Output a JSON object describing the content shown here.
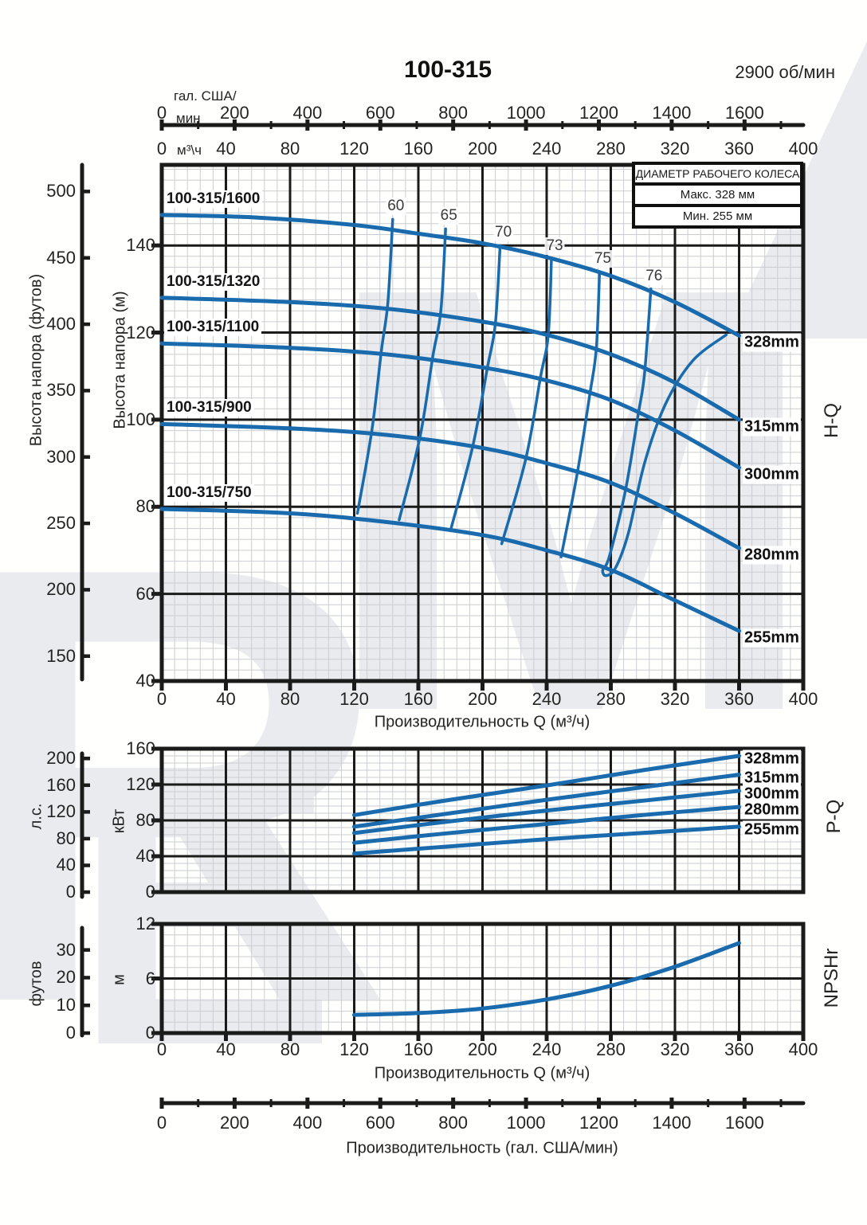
{
  "header": {
    "title": "100-315",
    "rpm": "2900 об/мин"
  },
  "legend": {
    "title": "ДИАМЕТР РАБОЧЕГО КОЛЕСА",
    "max_label": "Макс. 328 мм",
    "min_label": "Мин. 255 мм"
  },
  "chart_data": {
    "type": "line",
    "flow_axis_m3h": {
      "label": "Производительность Q (м³/ч)",
      "unit": "м³\\ч",
      "min": 0,
      "max": 400,
      "ticks": [
        0,
        40,
        80,
        120,
        160,
        200,
        240,
        280,
        320,
        360,
        400
      ]
    },
    "gal_axis": {
      "label": "Производительность (гал. США/мин)",
      "unit_line1": "гал. США/",
      "unit_line2": "мин",
      "ticks": [
        0,
        200,
        400,
        600,
        800,
        1000,
        1200,
        1400,
        1600
      ],
      "gal_per_m3h": 4.4029,
      "minor_step": 100,
      "max_minor": 1700
    },
    "hq_chart": {
      "side_label": "H-Q",
      "head_m": {
        "label": "Высота напора (м)",
        "min": 40,
        "max": 158.5,
        "ticks": [
          40,
          60,
          80,
          100,
          120,
          140
        ]
      },
      "head_ft": {
        "label": "Высота напора (футов)",
        "ft_per_m": 3.2808,
        "ticks": [
          150,
          200,
          250,
          300,
          350,
          400,
          450,
          500
        ]
      },
      "curves": [
        {
          "model": "100-315/1600",
          "diameter": "328mm",
          "points": [
            [
              0,
              147
            ],
            [
              60,
              146.4
            ],
            [
              120,
              144.7
            ],
            [
              160,
              142.7
            ],
            [
              200,
              140.5
            ],
            [
              240,
              137.3
            ],
            [
              280,
              133
            ],
            [
              320,
              127
            ],
            [
              360,
              119.3
            ]
          ]
        },
        {
          "model": "100-315/1320",
          "diameter": "315mm",
          "points": [
            [
              0,
              128
            ],
            [
              80,
              127
            ],
            [
              140,
              125.5
            ],
            [
              200,
              122.5
            ],
            [
              240,
              119.5
            ],
            [
              280,
              115
            ],
            [
              320,
              108.5
            ],
            [
              360,
              100
            ]
          ]
        },
        {
          "model": "100-315/1100",
          "diameter": "300mm",
          "points": [
            [
              0,
              117.5
            ],
            [
              80,
              116.5
            ],
            [
              140,
              115
            ],
            [
              200,
              112
            ],
            [
              240,
              109
            ],
            [
              280,
              104.5
            ],
            [
              320,
              97.5
            ],
            [
              360,
              89
            ]
          ]
        },
        {
          "model": "100-315/900",
          "diameter": "280mm",
          "points": [
            [
              0,
              99
            ],
            [
              80,
              98
            ],
            [
              140,
              96.5
            ],
            [
              200,
              93.5
            ],
            [
              240,
              90
            ],
            [
              280,
              85.5
            ],
            [
              320,
              78.5
            ],
            [
              360,
              70.5
            ]
          ]
        },
        {
          "model": "100-315/750",
          "diameter": "255mm",
          "points": [
            [
              0,
              79.5
            ],
            [
              80,
              78.5
            ],
            [
              140,
              76.5
            ],
            [
              200,
              73.5
            ],
            [
              240,
              70
            ],
            [
              280,
              65.5
            ],
            [
              320,
              58.5
            ],
            [
              360,
              51.5
            ]
          ]
        }
      ],
      "efficiency_lines": [
        {
          "label": "60",
          "points": [
            [
              144,
              146
            ],
            [
              141,
              127
            ],
            [
              137,
              116
            ],
            [
              131,
              97.5
            ],
            [
              122,
              78.5
            ]
          ]
        },
        {
          "label": "65",
          "points": [
            [
              177,
              143.8
            ],
            [
              174,
              125
            ],
            [
              169,
              114.5
            ],
            [
              161,
              96
            ],
            [
              148,
              77
            ]
          ]
        },
        {
          "label": "70",
          "points": [
            [
              211,
              140
            ],
            [
              208,
              122
            ],
            [
              203,
              111.8
            ],
            [
              194,
              94
            ],
            [
              180,
              74.5
            ]
          ]
        },
        {
          "label": "73",
          "points": [
            [
              243,
              137
            ],
            [
              241,
              119.5
            ],
            [
              236,
              109.5
            ],
            [
              227,
              91
            ],
            [
              212,
              71.5
            ]
          ]
        },
        {
          "label": "75",
          "points": [
            [
              273,
              134
            ],
            [
              271,
              116.5
            ],
            [
              267,
              106
            ],
            [
              259,
              87.5
            ],
            [
              249,
              68.5
            ]
          ]
        },
        {
          "label": "76",
          "points": [
            [
              305,
              130
            ],
            [
              301,
              110.5
            ],
            [
              297,
              101
            ],
            [
              289,
              83.5
            ],
            [
              279,
              68.5
            ],
            [
              275,
              65.5
            ],
            [
              277,
              64.2
            ],
            [
              283,
              66
            ],
            [
              291,
              74
            ],
            [
              301,
              90
            ],
            [
              314,
              103.5
            ],
            [
              331,
              113.5
            ],
            [
              352,
              119.5
            ]
          ]
        }
      ]
    },
    "pq_chart": {
      "side_label": "P-Q",
      "power_kw": {
        "label": "кВт",
        "min": 0,
        "max": 160,
        "ticks": [
          0,
          40,
          80,
          120,
          160
        ]
      },
      "power_hp": {
        "label": "л.с.",
        "hp_per_kw": 1.341,
        "ticks": [
          0,
          40,
          80,
          120,
          160,
          200
        ]
      },
      "curves": [
        {
          "diameter": "328mm",
          "points": [
            [
              120,
              86
            ],
            [
              180,
              103
            ],
            [
              240,
              119
            ],
            [
              300,
              136
            ],
            [
              360,
              152
            ]
          ]
        },
        {
          "diameter": "315mm",
          "points": [
            [
              120,
              73
            ],
            [
              180,
              88
            ],
            [
              240,
              103
            ],
            [
              300,
              117
            ],
            [
              360,
              131
            ]
          ]
        },
        {
          "diameter": "300mm",
          "points": [
            [
              120,
              66
            ],
            [
              180,
              79
            ],
            [
              240,
              91
            ],
            [
              300,
              102
            ],
            [
              360,
              113
            ]
          ]
        },
        {
          "diameter": "280mm",
          "points": [
            [
              120,
              55
            ],
            [
              180,
              66
            ],
            [
              240,
              76
            ],
            [
              300,
              86
            ],
            [
              360,
              95
            ]
          ]
        },
        {
          "diameter": "255mm",
          "points": [
            [
              120,
              43
            ],
            [
              180,
              51
            ],
            [
              240,
              59
            ],
            [
              300,
              66
            ],
            [
              360,
              73
            ]
          ]
        }
      ]
    },
    "npsh_chart": {
      "side_label": "NPSHr",
      "npsh_m": {
        "label": "м",
        "min": 0,
        "max": 12,
        "ticks": [
          0,
          6,
          12
        ]
      },
      "npsh_ft": {
        "label": "футов",
        "ft_per_m": 3.2808,
        "ticks": [
          0,
          10,
          20,
          30
        ]
      },
      "curve_points": [
        [
          120,
          2
        ],
        [
          160,
          2.2
        ],
        [
          200,
          2.7
        ],
        [
          240,
          3.7
        ],
        [
          280,
          5.2
        ],
        [
          320,
          7.3
        ],
        [
          360,
          9.9
        ]
      ]
    }
  }
}
